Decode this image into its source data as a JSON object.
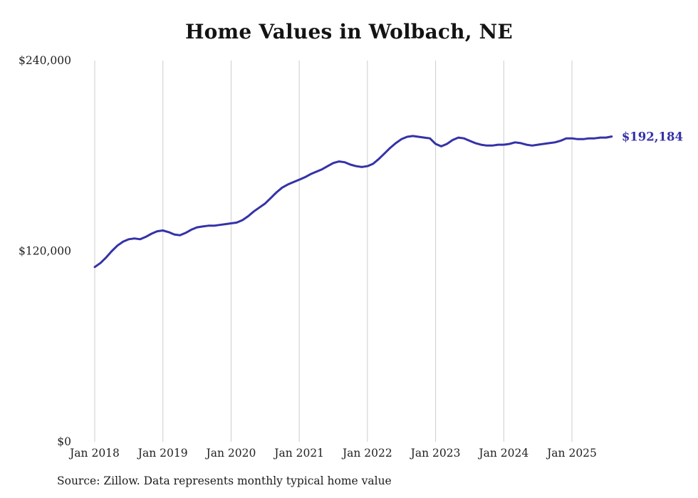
{
  "chart_data": {
    "type": "line",
    "title": "Home Values in Wolbach, NE",
    "xlabel": "",
    "ylabel": "",
    "ylim": [
      0,
      240000
    ],
    "grid": "vertical-only",
    "legend": "none",
    "line_color": "#3532a8",
    "grid_color": "#cccccc",
    "end_label": "$192,184",
    "x_tick_labels": [
      "Jan 2018",
      "Jan 2019",
      "Jan 2020",
      "Jan 2021",
      "Jan 2022",
      "Jan 2023",
      "Jan 2024",
      "Jan 2025"
    ],
    "y_ticks": [
      {
        "label": "$0",
        "value": 0
      },
      {
        "label": "$120,000",
        "value": 120000
      },
      {
        "label": "$240,000",
        "value": 240000
      }
    ],
    "x": [
      "2018-01",
      "2018-02",
      "2018-03",
      "2018-04",
      "2018-05",
      "2018-06",
      "2018-07",
      "2018-08",
      "2018-09",
      "2018-10",
      "2018-11",
      "2018-12",
      "2019-01",
      "2019-02",
      "2019-03",
      "2019-04",
      "2019-05",
      "2019-06",
      "2019-07",
      "2019-08",
      "2019-09",
      "2019-10",
      "2019-11",
      "2019-12",
      "2020-01",
      "2020-02",
      "2020-03",
      "2020-04",
      "2020-05",
      "2020-06",
      "2020-07",
      "2020-08",
      "2020-09",
      "2020-10",
      "2020-11",
      "2020-12",
      "2021-01",
      "2021-02",
      "2021-03",
      "2021-04",
      "2021-05",
      "2021-06",
      "2021-07",
      "2021-08",
      "2021-09",
      "2021-10",
      "2021-11",
      "2021-12",
      "2022-01",
      "2022-02",
      "2022-03",
      "2022-04",
      "2022-05",
      "2022-06",
      "2022-07",
      "2022-08",
      "2022-09",
      "2022-10",
      "2022-11",
      "2022-12",
      "2023-01",
      "2023-02",
      "2023-03",
      "2023-04",
      "2023-05",
      "2023-06",
      "2023-07",
      "2023-08",
      "2023-09",
      "2023-10",
      "2023-11",
      "2023-12",
      "2024-01",
      "2024-02",
      "2024-03",
      "2024-04",
      "2024-05",
      "2024-06",
      "2024-07",
      "2024-08",
      "2024-09",
      "2024-10",
      "2024-11",
      "2024-12",
      "2025-01",
      "2025-02",
      "2025-03",
      "2025-04",
      "2025-05",
      "2025-06",
      "2025-07",
      "2025-08"
    ],
    "values": [
      110000,
      112500,
      116000,
      120000,
      123500,
      126000,
      127500,
      128000,
      127500,
      129000,
      131000,
      132500,
      133000,
      132000,
      130500,
      130000,
      131500,
      133500,
      135000,
      135500,
      136000,
      136000,
      136500,
      137000,
      137500,
      138000,
      139500,
      142000,
      145000,
      147500,
      150000,
      153500,
      157000,
      160000,
      162000,
      163500,
      165000,
      166500,
      168500,
      170000,
      171500,
      173500,
      175500,
      176500,
      176000,
      174500,
      173500,
      173000,
      173500,
      175000,
      178000,
      181500,
      185000,
      188000,
      190500,
      192000,
      192500,
      192000,
      191500,
      191000,
      187500,
      186000,
      187500,
      190000,
      191500,
      191000,
      189500,
      188000,
      187000,
      186500,
      186500,
      187000,
      187000,
      187500,
      188500,
      188000,
      187000,
      186500,
      187000,
      187500,
      188000,
      188500,
      189500,
      191000,
      191000,
      190500,
      190500,
      191000,
      191000,
      191500,
      191500,
      192184
    ]
  },
  "footer": {
    "source": "Source: Zillow. Data represents monthly typical home value"
  }
}
